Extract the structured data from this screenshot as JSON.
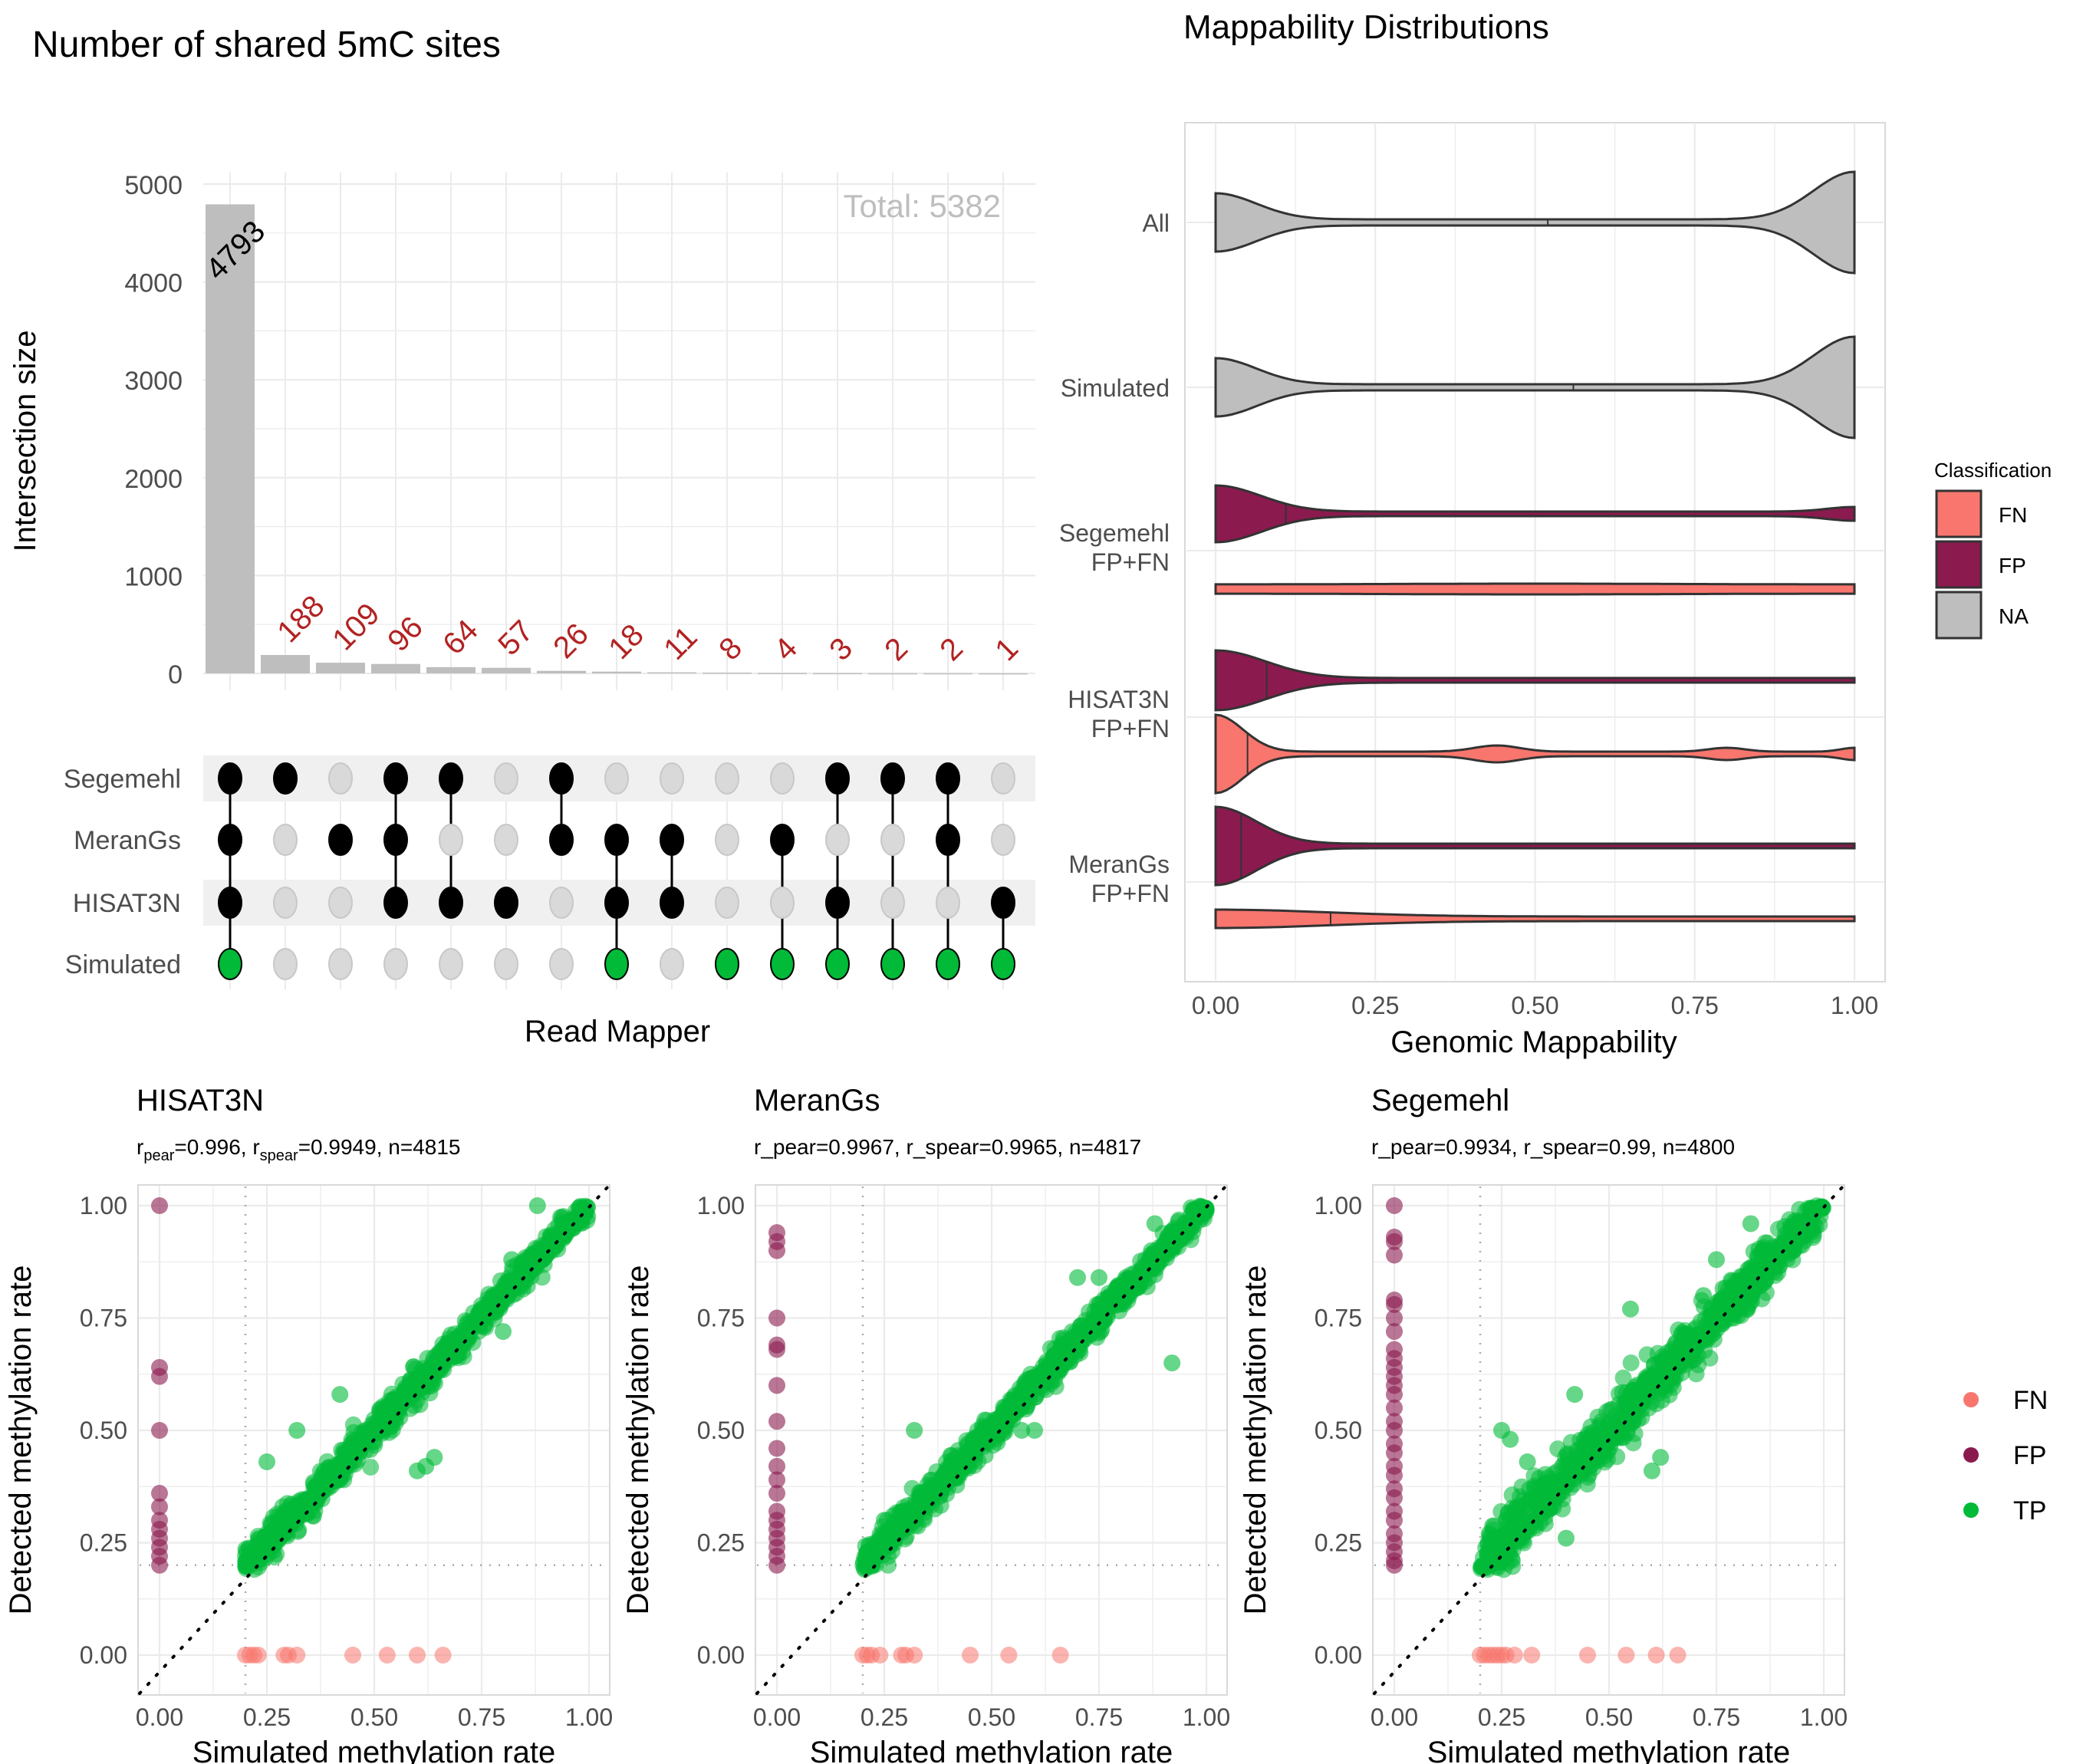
{
  "colors": {
    "FN": "#F8766D",
    "FP": "#8B1A4F",
    "NA": "#BEBEBE",
    "TP": "#00BA38",
    "count_label": "#B22222",
    "bar": "#BEBEBE",
    "dot_off": "#D9D9D9",
    "dot_on": "#000000"
  },
  "chart_data": [
    {
      "type": "bar",
      "name": "upset",
      "title": "Number of shared 5mC sites",
      "ylabel": "Intersection size",
      "xlabel": "Read Mapper",
      "ylim": [
        0,
        5000
      ],
      "yticks": [
        "0",
        "1000",
        "2000",
        "3000",
        "4000",
        "5000"
      ],
      "total_label": "Total: 5382",
      "values": [
        4793,
        188,
        109,
        96,
        64,
        57,
        26,
        18,
        11,
        8,
        4,
        3,
        2,
        2,
        1
      ],
      "sets": [
        "Segemehl",
        "MeranGs",
        "HISAT3N",
        "Simulated"
      ],
      "membership": [
        [
          1,
          1,
          1,
          1
        ],
        [
          1,
          0,
          0,
          0
        ],
        [
          0,
          1,
          0,
          0
        ],
        [
          1,
          1,
          1,
          0
        ],
        [
          1,
          0,
          1,
          0
        ],
        [
          0,
          0,
          1,
          0
        ],
        [
          1,
          1,
          0,
          0
        ],
        [
          0,
          1,
          1,
          1
        ],
        [
          0,
          1,
          1,
          0
        ],
        [
          0,
          0,
          0,
          1
        ],
        [
          0,
          1,
          0,
          1
        ],
        [
          1,
          0,
          1,
          1
        ],
        [
          1,
          0,
          0,
          1
        ],
        [
          1,
          1,
          0,
          1
        ],
        [
          0,
          0,
          1,
          1
        ]
      ]
    },
    {
      "type": "violin",
      "name": "mappability",
      "title": "Mappability Distributions",
      "xlabel": "Genomic Mappability",
      "xlim": [
        0,
        1
      ],
      "xticks": [
        "0.00",
        "0.25",
        "0.50",
        "0.75",
        "1.00"
      ],
      "groups": [
        {
          "label": "All",
          "rows": [
            {
              "class": "NA",
              "median": 0.52
            }
          ]
        },
        {
          "label": "Simulated",
          "rows": [
            {
              "class": "NA",
              "median": 0.56
            }
          ]
        },
        {
          "label": "Segemehl\nFP+FN",
          "rows": [
            {
              "class": "FP",
              "median": 0.11
            },
            {
              "class": "FN",
              "median": null
            }
          ]
        },
        {
          "label": "HISAT3N\nFP+FN",
          "rows": [
            {
              "class": "FP",
              "median": 0.08
            },
            {
              "class": "FN",
              "median": 0.05
            }
          ]
        },
        {
          "label": "MeranGs\nFP+FN",
          "rows": [
            {
              "class": "FP",
              "median": 0.04
            },
            {
              "class": "FN",
              "median": 0.18
            }
          ]
        }
      ],
      "legend": {
        "title": "Classification",
        "items": [
          "FN",
          "FP",
          "NA"
        ],
        "position": "right"
      }
    },
    {
      "type": "scatter",
      "name": "HISAT3N",
      "title": "HISAT3N",
      "subtitle": {
        "pear": "0.996",
        "spear": "0.9949",
        "n": "4815",
        "style": "subscript"
      },
      "xlabel": "Simulated methylation rate",
      "ylabel": "Detected methylation rate",
      "xlim": [
        0,
        1
      ],
      "ylim": [
        0,
        1
      ],
      "xticks": [
        "0.00",
        "0.25",
        "0.50",
        "0.75",
        "1.00"
      ],
      "yticks": [
        "0.00",
        "0.25",
        "0.50",
        "0.75",
        "1.00"
      ],
      "threshold": 0.2,
      "fp_y": [
        1.0,
        0.64,
        0.62,
        0.5,
        0.36,
        0.33,
        0.3,
        0.28,
        0.26,
        0.24,
        0.22,
        0.2
      ],
      "fn_x": [
        0.2,
        0.21,
        0.22,
        0.23,
        0.29,
        0.3,
        0.32,
        0.45,
        0.53,
        0.6,
        0.66
      ],
      "tp_outliers": [
        [
          0.88,
          1.0
        ],
        [
          0.42,
          0.58
        ],
        [
          0.32,
          0.5
        ],
        [
          0.25,
          0.43
        ],
        [
          0.6,
          0.41
        ],
        [
          0.62,
          0.42
        ],
        [
          0.64,
          0.44
        ],
        [
          0.75,
          0.77
        ],
        [
          0.8,
          0.72
        ],
        [
          0.82,
          0.88
        ]
      ]
    },
    {
      "type": "scatter",
      "name": "MeranGs",
      "title": "MeranGs",
      "subtitle_text": "r_pear=0.9967, r_spear=0.9965, n=4817",
      "xlabel": "Simulated methylation rate",
      "ylabel": "Detected methylation rate",
      "xlim": [
        0,
        1
      ],
      "ylim": [
        0,
        1
      ],
      "xticks": [
        "0.00",
        "0.25",
        "0.50",
        "0.75",
        "1.00"
      ],
      "yticks": [
        "0.00",
        "0.25",
        "0.50",
        "0.75",
        "1.00"
      ],
      "threshold": 0.2,
      "fp_y": [
        0.94,
        0.92,
        0.9,
        0.75,
        0.69,
        0.68,
        0.6,
        0.52,
        0.46,
        0.42,
        0.39,
        0.36,
        0.32,
        0.3,
        0.28,
        0.26,
        0.24,
        0.22,
        0.2
      ],
      "fn_x": [
        0.2,
        0.21,
        0.22,
        0.24,
        0.29,
        0.3,
        0.32,
        0.45,
        0.54,
        0.66
      ],
      "tp_outliers": [
        [
          0.92,
          0.65
        ],
        [
          0.32,
          0.5
        ],
        [
          0.88,
          0.96
        ],
        [
          0.7,
          0.84
        ],
        [
          0.75,
          0.84
        ],
        [
          0.25,
          0.3
        ],
        [
          0.6,
          0.5
        ],
        [
          0.57,
          0.5
        ]
      ]
    },
    {
      "type": "scatter",
      "name": "Segemehl",
      "title": "Segemehl",
      "subtitle_text": "r_pear=0.9934, r_spear=0.99, n=4800",
      "xlabel": "Simulated methylation rate",
      "ylabel": "Detected methylation rate",
      "xlim": [
        0,
        1
      ],
      "ylim": [
        0,
        1
      ],
      "xticks": [
        "0.00",
        "0.25",
        "0.50",
        "0.75",
        "1.00"
      ],
      "yticks": [
        "0.00",
        "0.25",
        "0.50",
        "0.75",
        "1.00"
      ],
      "threshold": 0.2,
      "fp_y": [
        1.0,
        0.93,
        0.92,
        0.89,
        0.79,
        0.78,
        0.75,
        0.72,
        0.68,
        0.66,
        0.64,
        0.62,
        0.6,
        0.58,
        0.55,
        0.52,
        0.5,
        0.47,
        0.45,
        0.42,
        0.4,
        0.37,
        0.35,
        0.32,
        0.3,
        0.27,
        0.25,
        0.23,
        0.21,
        0.2
      ],
      "fn_x": [
        0.2,
        0.21,
        0.22,
        0.23,
        0.24,
        0.25,
        0.26,
        0.28,
        0.32,
        0.45,
        0.54,
        0.61,
        0.66
      ],
      "tp_outliers": [
        [
          0.55,
          0.77
        ],
        [
          0.42,
          0.58
        ],
        [
          0.25,
          0.5
        ],
        [
          0.27,
          0.48
        ],
        [
          0.31,
          0.43
        ],
        [
          0.6,
          0.41
        ],
        [
          0.62,
          0.44
        ],
        [
          0.4,
          0.26
        ],
        [
          0.26,
          0.3
        ],
        [
          0.75,
          0.88
        ],
        [
          0.83,
          0.96
        ],
        [
          0.72,
          0.8
        ]
      ]
    }
  ],
  "scatter_legend": {
    "items": [
      "FN",
      "FP",
      "TP"
    ],
    "position": "right"
  }
}
